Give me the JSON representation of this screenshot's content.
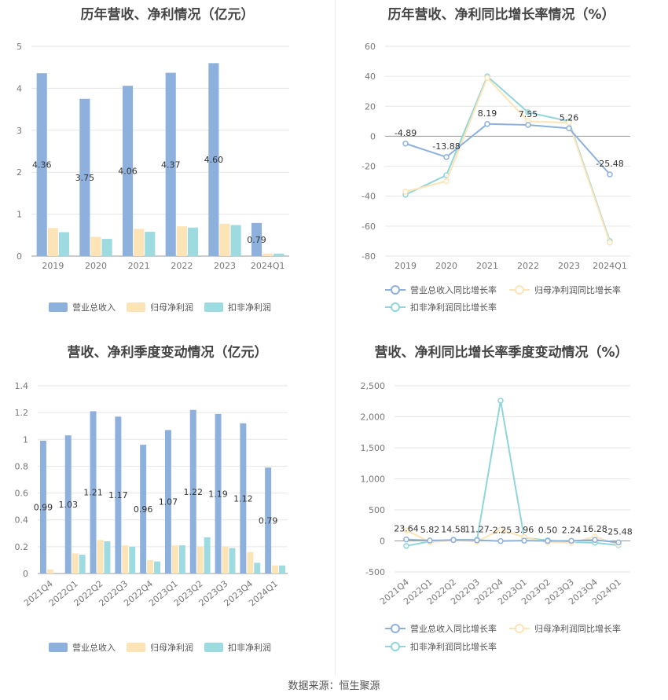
{
  "source_text": "数据来源：恒生聚源",
  "colors": {
    "revenue": "#8eb0dc",
    "parent_profit": "#fde4b6",
    "deducted_profit": "#9edbe0",
    "rev_line": "#8eb0dc",
    "parent_line": "#fde4b6",
    "deducted_line": "#8fd6dc",
    "grid": "#e6e6e6"
  },
  "chart_data": [
    {
      "id": "annual-bar",
      "type": "bar",
      "title": "历年营收、净利情况（亿元）",
      "categories": [
        "2019",
        "2020",
        "2021",
        "2022",
        "2023",
        "2024Q1"
      ],
      "ylim": [
        0,
        5
      ],
      "yticks": [
        "0",
        "1",
        "2",
        "3",
        "4",
        "5"
      ],
      "series": [
        {
          "name": "营业总收入",
          "values": [
            4.36,
            3.75,
            4.06,
            4.37,
            4.6,
            0.79
          ],
          "labels": [
            "4.36",
            "3.75",
            "4.06",
            "4.37",
            "4.60",
            "0.79"
          ]
        },
        {
          "name": "归母净利润",
          "values": [
            0.67,
            0.46,
            0.65,
            0.71,
            0.77,
            0.06
          ]
        },
        {
          "name": "扣非净利润",
          "values": [
            0.57,
            0.41,
            0.58,
            0.68,
            0.74,
            0.06
          ]
        }
      ]
    },
    {
      "id": "annual-line",
      "type": "line",
      "title": "历年营收、净利同比增长率情况（%）",
      "categories": [
        "2019",
        "2020",
        "2021",
        "2022",
        "2023",
        "2024Q1"
      ],
      "ylim": [
        -80,
        60
      ],
      "yticks": [
        "-80",
        "-60",
        "-40",
        "-20",
        "0",
        "20",
        "40",
        "60"
      ],
      "series": [
        {
          "name": "营业总收入同比增长率",
          "values": [
            -4.89,
            -13.88,
            8.19,
            7.55,
            5.26,
            -25.48
          ],
          "labels": [
            "-4.89",
            "-13.88",
            "8.19",
            "7.55",
            "5.26",
            "-25.48"
          ]
        },
        {
          "name": "归母净利润同比增长率",
          "values": [
            -37,
            -30,
            39,
            10,
            9,
            -71
          ]
        },
        {
          "name": "扣非净利润同比增长率",
          "values": [
            -39,
            -26,
            40,
            16,
            10,
            -70
          ]
        }
      ]
    },
    {
      "id": "quarter-bar",
      "type": "bar",
      "title": "营收、净利季度变动情况（亿元）",
      "categories": [
        "2021Q4",
        "2022Q1",
        "2022Q2",
        "2022Q3",
        "2022Q4",
        "2023Q1",
        "2023Q2",
        "2023Q3",
        "2023Q4",
        "2024Q1"
      ],
      "ylim": [
        0,
        1.4
      ],
      "yticks": [
        "0",
        "0.2",
        "0.4",
        "0.6",
        "0.8",
        "1",
        "1.2",
        "1.4"
      ],
      "series": [
        {
          "name": "营业总收入",
          "values": [
            0.99,
            1.03,
            1.21,
            1.17,
            0.96,
            1.07,
            1.22,
            1.19,
            1.12,
            0.79
          ],
          "labels": [
            "0.99",
            "1.03",
            "1.21",
            "1.17",
            "0.96",
            "1.07",
            "1.22",
            "1.19",
            "1.12",
            "0.79"
          ]
        },
        {
          "name": "归母净利润",
          "values": [
            0.03,
            0.15,
            0.25,
            0.21,
            0.1,
            0.21,
            0.2,
            0.2,
            0.16,
            0.06
          ]
        },
        {
          "name": "扣非净利润",
          "values": [
            0.0,
            0.14,
            0.24,
            0.2,
            0.09,
            0.21,
            0.27,
            0.19,
            0.08,
            0.06
          ]
        }
      ]
    },
    {
      "id": "quarter-line",
      "type": "line",
      "title": "营收、净利同比增长率季度变动情况（%）",
      "categories": [
        "2021Q4",
        "2022Q1",
        "2022Q2",
        "2022Q3",
        "2022Q4",
        "2023Q1",
        "2023Q2",
        "2023Q3",
        "2023Q4",
        "2024Q1"
      ],
      "ylim": [
        -500,
        2500
      ],
      "yticks": [
        "-500",
        "0",
        "500",
        "1,000",
        "1,500",
        "2,000",
        "2,500"
      ],
      "series": [
        {
          "name": "营业总收入同比增长率",
          "values": [
            23.64,
            5.82,
            14.58,
            11.27,
            -2.25,
            3.96,
            0.5,
            2.24,
            16.28,
            -25.48
          ],
          "labels": [
            "23.64",
            "5.82",
            "14.58",
            "11.27",
            "-2.25",
            "3.96",
            "0.50",
            "2.24",
            "16.28",
            "-25.48"
          ]
        },
        {
          "name": "归母净利润同比增长率",
          "values": [
            170,
            -20,
            10,
            -10,
            180,
            60,
            -20,
            -30,
            70,
            -60
          ]
        },
        {
          "name": "扣非净利润同比增长率",
          "values": [
            -80,
            -10,
            20,
            20,
            2260,
            50,
            10,
            -20,
            -30,
            -70
          ]
        }
      ]
    }
  ]
}
